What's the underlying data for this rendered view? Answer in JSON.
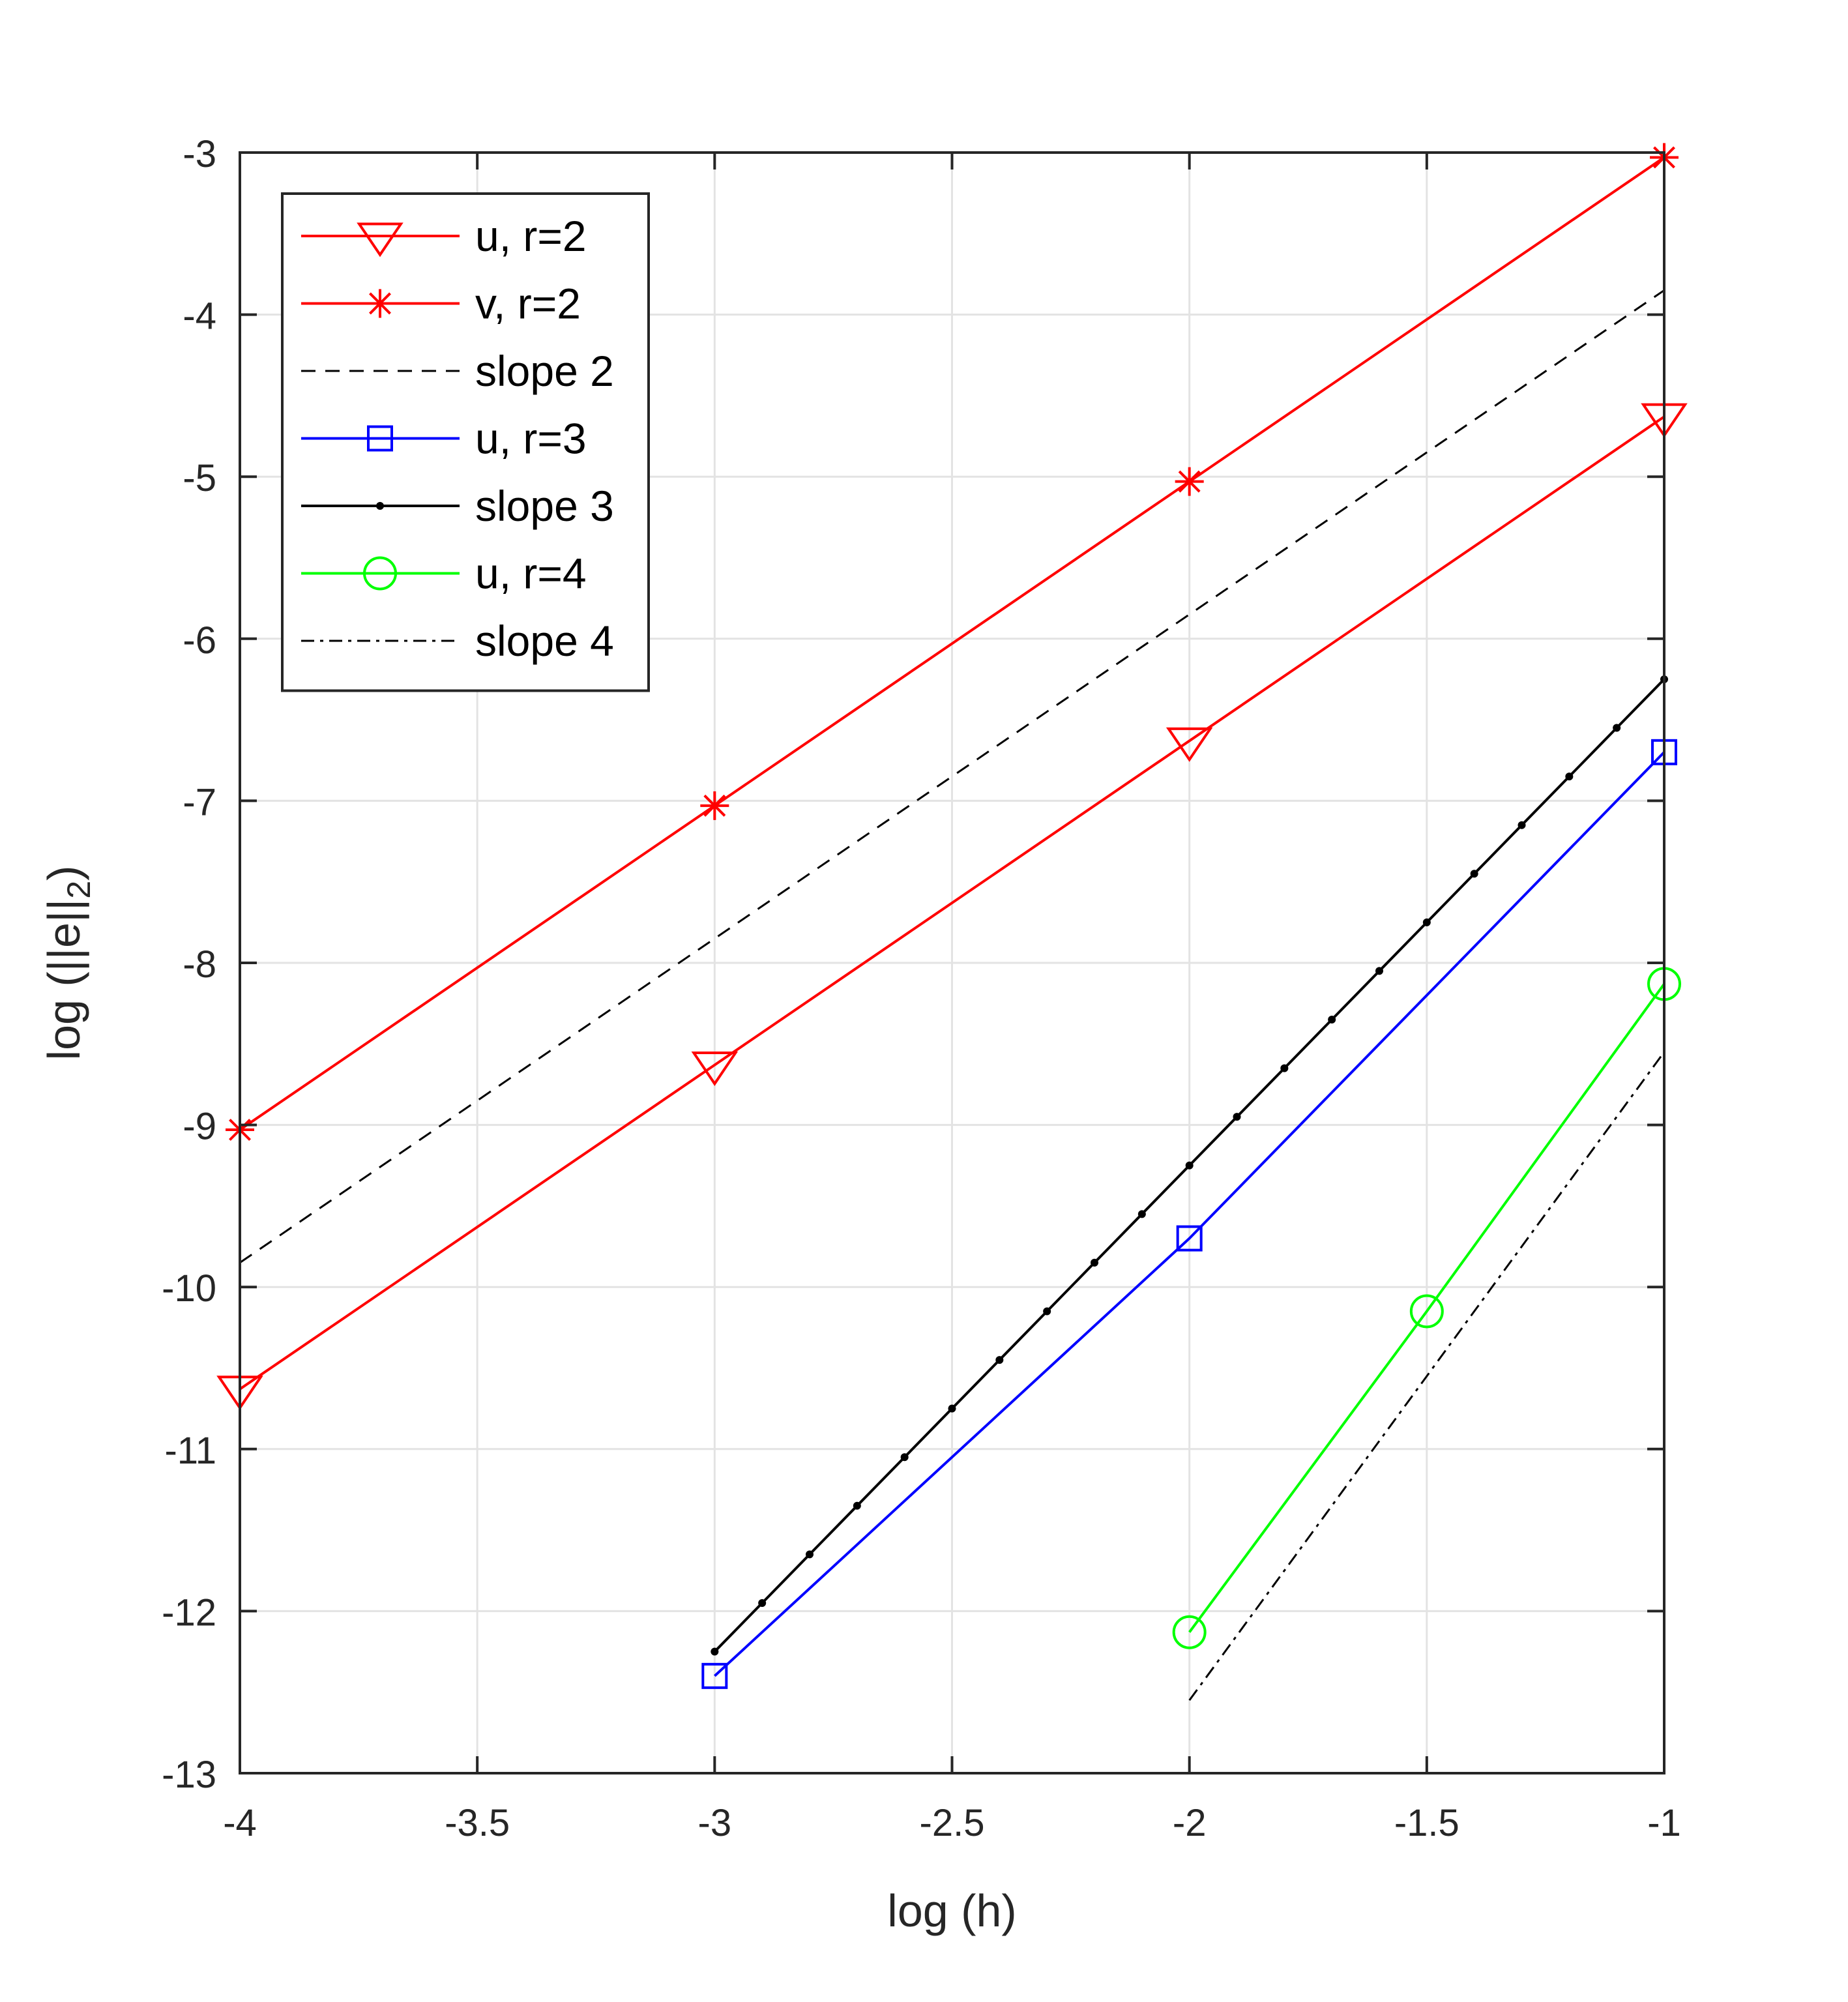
{
  "chart_data": {
    "type": "line",
    "xlabel": "log (h)",
    "ylabel_main": "log (||e||",
    "ylabel_sub": "2",
    "ylabel_close": ")",
    "xlim": [
      -4,
      -1
    ],
    "ylim": [
      -13,
      -3
    ],
    "xticks": [
      -4,
      -3.5,
      -3,
      -2.5,
      -2,
      -1.5,
      -1
    ],
    "xtick_labels": [
      "-4",
      "-3.5",
      "-3",
      "-2.5",
      "-2",
      "-1.5",
      "-1"
    ],
    "yticks": [
      -13,
      -12,
      -11,
      -10,
      -9,
      -8,
      -7,
      -6,
      -5,
      -4,
      -3
    ],
    "ytick_labels": [
      "-13",
      "-12",
      "-11",
      "-10",
      "-9",
      "-8",
      "-7",
      "-6",
      "-5",
      "-4",
      "-3"
    ],
    "grid": true,
    "legend_position": "top-left",
    "series": [
      {
        "name": "u, r=2",
        "color": "#ff0000",
        "marker": "triangle-down",
        "dash": "solid",
        "x": [
          -4,
          -3,
          -2,
          -1
        ],
        "y": [
          -10.63,
          -8.63,
          -6.63,
          -4.63
        ]
      },
      {
        "name": "v, r=2",
        "color": "#ff0000",
        "marker": "asterisk",
        "dash": "solid",
        "x": [
          -4,
          -3,
          -2,
          -1
        ],
        "y": [
          -9.03,
          -7.03,
          -5.03,
          -3.03
        ]
      },
      {
        "name": "slope 2",
        "color": "#000000",
        "marker": "none",
        "dash": "dashed",
        "x": [
          -4,
          -1
        ],
        "y": [
          -9.85,
          -3.85
        ]
      },
      {
        "name": "u, r=3",
        "color": "#0000ff",
        "marker": "square",
        "dash": "solid",
        "x": [
          -3,
          -2,
          -1
        ],
        "y": [
          -12.4,
          -9.7,
          -6.7
        ]
      },
      {
        "name": "slope 3",
        "color": "#000000",
        "marker": "dot",
        "dash": "solid",
        "x": [
          -3,
          -2.9,
          -2.8,
          -2.7,
          -2.6,
          -2.5,
          -2.4,
          -2.3,
          -2.2,
          -2.1,
          -2,
          -1.9,
          -1.8,
          -1.7,
          -1.6,
          -1.5,
          -1.4,
          -1.3,
          -1.2,
          -1.1,
          -1
        ],
        "y": [
          -12.25,
          -11.95,
          -11.65,
          -11.35,
          -11.05,
          -10.75,
          -10.45,
          -10.15,
          -9.85,
          -9.55,
          -9.25,
          -8.95,
          -8.65,
          -8.35,
          -8.05,
          -7.75,
          -7.45,
          -7.15,
          -6.85,
          -6.55,
          -6.25
        ]
      },
      {
        "name": "u, r=4",
        "color": "#00ff00",
        "marker": "circle",
        "dash": "solid",
        "x": [
          -2,
          -1.5,
          -1
        ],
        "y": [
          -12.13,
          -10.15,
          -8.13
        ]
      },
      {
        "name": "slope 4",
        "color": "#000000",
        "marker": "none",
        "dash": "dashdot",
        "x": [
          -2,
          -1
        ],
        "y": [
          -12.55,
          -8.55
        ]
      }
    ]
  }
}
